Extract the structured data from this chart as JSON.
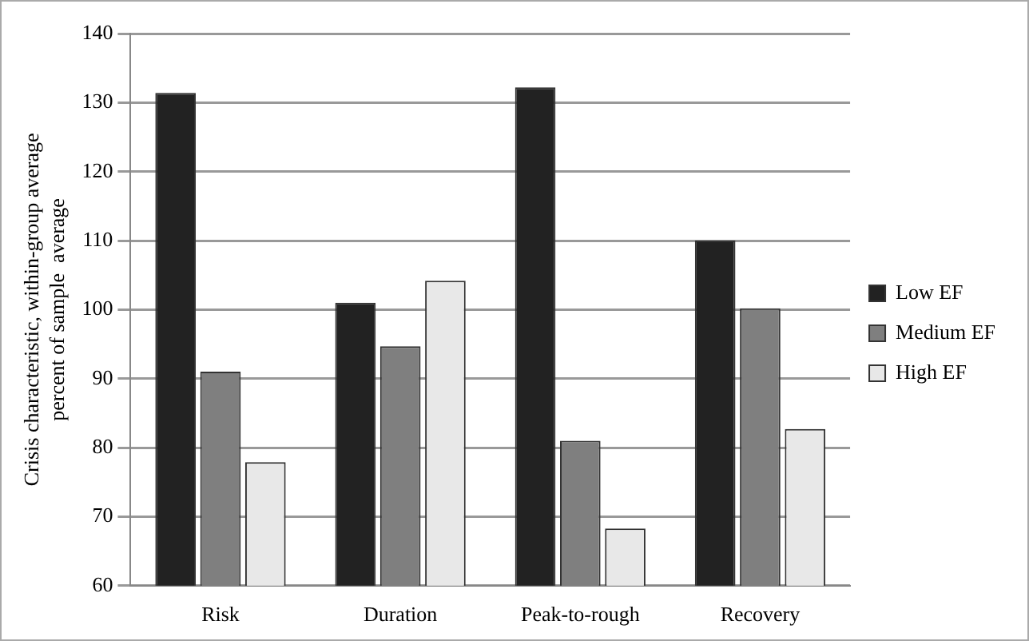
{
  "chart_data": {
    "type": "bar",
    "ylabel": "Crisis characteristic, within-group average\npercent of sample  average",
    "categories": [
      "Risk",
      "Duration",
      "Peak-to-rough",
      "Recovery"
    ],
    "series": [
      {
        "name": "Low EF",
        "color": "#222222",
        "values": [
          131.4,
          101.0,
          132.2,
          110.0
        ]
      },
      {
        "name": "Medium EF",
        "color": "#7f7f7f",
        "values": [
          91.0,
          94.7,
          81.0,
          100.2
        ]
      },
      {
        "name": "High EF",
        "color": "#e8e8e8",
        "values": [
          77.9,
          104.2,
          68.3,
          82.7
        ]
      }
    ],
    "ylim": [
      60,
      140
    ],
    "yticks": [
      60,
      70,
      80,
      90,
      100,
      110,
      120,
      130,
      140
    ],
    "grid": "y",
    "legend": "right"
  }
}
